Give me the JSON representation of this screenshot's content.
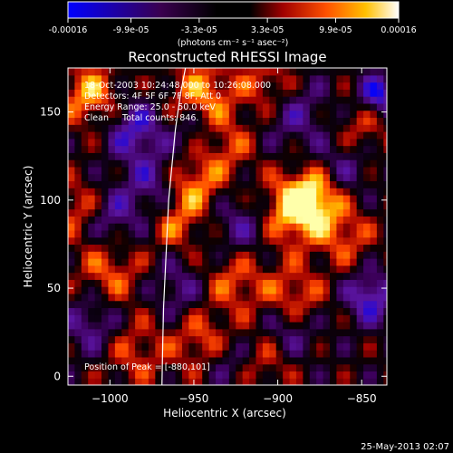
{
  "colorbar": {
    "tick_labels": [
      "-0.00016",
      "-9.9e-05",
      "-3.3e-05",
      "3.3e-05",
      "9.9e-05",
      "0.00016"
    ],
    "tick_values": [
      -0.00016,
      -9.9e-05,
      -3.3e-05,
      3.3e-05,
      9.9e-05,
      0.00016
    ],
    "range": [
      -0.00016,
      0.00016
    ],
    "units_label": "(photons cm⁻² s⁻¹ asec⁻²)",
    "colors": [
      "#0000ff",
      "#400040",
      "#000000",
      "#a00000",
      "#ff5000",
      "#ffb000",
      "#ffff90",
      "#ffffff"
    ]
  },
  "footer": {
    "date": "25-May-2013 02:07"
  },
  "chart_data": {
    "type": "heatmap",
    "title": "Reconstructed RHESSI Image",
    "xlabel": "Heliocentric X (arcsec)",
    "ylabel": "Heliocentric Y (arcsec)",
    "xlim": [
      -1025,
      -835
    ],
    "ylim": [
      -5,
      175
    ],
    "xticks": [
      -1000,
      -950,
      -900,
      -850
    ],
    "xtick_labels": [
      "−1000",
      "−950",
      "−900",
      "−850"
    ],
    "yticks": [
      0,
      50,
      100,
      150
    ],
    "ytick_labels": [
      "0",
      "50",
      "100",
      "150"
    ],
    "info_lines": [
      "18-Oct-2003 10:24:48.000 to 10:26:08.000",
      "Detectors: 4F 5F 6F 7F 8F, Att 0",
      "Energy Range: 25.0 - 50.0 keV",
      "Clean     Total counts: 846."
    ],
    "peak_text": "Position of Peak = [-880,101]",
    "peak": [
      -880,
      101
    ],
    "limb_curve": [
      [
        -955,
        175
      ],
      [
        -958,
        160
      ],
      [
        -961,
        140
      ],
      [
        -963,
        120
      ],
      [
        -965,
        100
      ],
      [
        -966,
        80
      ],
      [
        -967,
        60
      ],
      [
        -968,
        40
      ],
      [
        -968.5,
        20
      ],
      [
        -969,
        -5
      ]
    ],
    "blobs": [
      {
        "x": -880,
        "y": 101,
        "v": 1.0,
        "s": 12
      },
      {
        "x": -895,
        "y": 92,
        "v": 0.7,
        "s": 14
      },
      {
        "x": -1012,
        "y": 160,
        "v": 0.75,
        "s": 12
      },
      {
        "x": -945,
        "y": 160,
        "v": 0.7,
        "s": 14
      },
      {
        "x": -905,
        "y": 165,
        "v": 0.55,
        "s": 12
      },
      {
        "x": -1018,
        "y": 95,
        "v": 0.55,
        "s": 12
      },
      {
        "x": -1000,
        "y": 60,
        "v": 0.55,
        "s": 14
      },
      {
        "x": -950,
        "y": 108,
        "v": 0.7,
        "s": 12
      },
      {
        "x": -960,
        "y": 85,
        "v": 0.5,
        "s": 10
      },
      {
        "x": -925,
        "y": 55,
        "v": 0.55,
        "s": 14
      },
      {
        "x": -890,
        "y": 45,
        "v": 0.6,
        "s": 12
      },
      {
        "x": -860,
        "y": 80,
        "v": 0.5,
        "s": 12
      },
      {
        "x": -985,
        "y": 15,
        "v": 0.45,
        "s": 14
      },
      {
        "x": -945,
        "y": 20,
        "v": 0.55,
        "s": 12
      },
      {
        "x": -905,
        "y": 12,
        "v": 0.5,
        "s": 12
      },
      {
        "x": -850,
        "y": 140,
        "v": 0.45,
        "s": 12
      },
      {
        "x": -930,
        "y": 130,
        "v": 0.45,
        "s": 12
      },
      {
        "x": -985,
        "y": 140,
        "v": -0.7,
        "s": 12
      },
      {
        "x": -975,
        "y": 110,
        "v": -0.5,
        "s": 12
      },
      {
        "x": -1000,
        "y": 90,
        "v": -0.6,
        "s": 12
      },
      {
        "x": -920,
        "y": 85,
        "v": -0.55,
        "s": 14
      },
      {
        "x": -890,
        "y": 150,
        "v": -0.5,
        "s": 14
      },
      {
        "x": -860,
        "y": 120,
        "v": -0.45,
        "s": 12
      },
      {
        "x": -840,
        "y": 160,
        "v": -0.9,
        "s": 8
      },
      {
        "x": -845,
        "y": 45,
        "v": -0.8,
        "s": 10
      },
      {
        "x": -895,
        "y": 25,
        "v": -0.6,
        "s": 12
      },
      {
        "x": -1010,
        "y": 30,
        "v": -0.55,
        "s": 12
      },
      {
        "x": -960,
        "y": 50,
        "v": -0.45,
        "s": 12
      },
      {
        "x": -930,
        "y": 10,
        "v": -0.4,
        "s": 10
      },
      {
        "x": -950,
        "y": 140,
        "v": -0.4,
        "s": 10
      }
    ]
  }
}
